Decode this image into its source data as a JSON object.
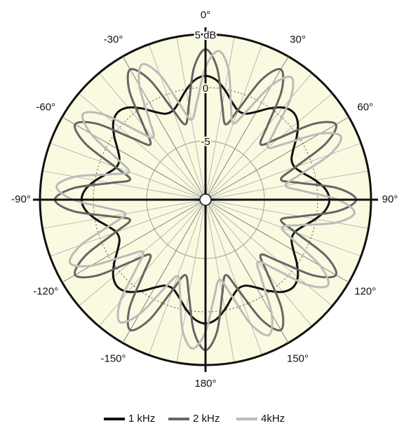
{
  "chart_data": {
    "type": "polar",
    "theta": [
      0,
      5,
      10,
      15,
      20,
      25,
      30,
      35,
      40,
      45,
      50,
      55,
      60,
      65,
      70,
      75,
      80,
      85,
      90,
      95,
      100,
      105,
      110,
      115,
      120,
      125,
      130,
      135,
      140,
      145,
      150,
      155,
      160,
      165,
      170,
      175,
      180,
      185,
      190,
      195,
      200,
      205,
      210,
      215,
      220,
      225,
      230,
      235,
      240,
      245,
      250,
      255,
      260,
      265,
      270,
      275,
      280,
      285,
      290,
      295,
      300,
      305,
      310,
      315,
      320,
      325,
      330,
      335,
      340,
      345,
      350,
      355
    ],
    "series": [
      {
        "name": "1 kHz",
        "color": "#111111",
        "width": 3,
        "values": [
          1.1,
          0.77,
          -0.06,
          -1.0,
          -1.62,
          -1.62,
          -1.0,
          -0.06,
          0.77,
          1.1,
          0.77,
          -0.06,
          -1.0,
          -1.62,
          -1.62,
          -1.0,
          -0.06,
          0.77,
          1.1,
          0.77,
          -0.06,
          -1.0,
          -1.62,
          -1.62,
          -1.0,
          -0.06,
          0.77,
          1.1,
          0.77,
          -0.06,
          -1.0,
          -1.62,
          -1.62,
          -1.0,
          -0.06,
          0.77,
          1.1,
          0.77,
          -0.06,
          -1.0,
          -1.62,
          -1.62,
          -1.0,
          -0.06,
          0.77,
          1.1,
          0.77,
          -0.06,
          -1.0,
          -1.62,
          -1.62,
          -1.0,
          -0.06,
          0.77,
          1.1,
          0.77,
          -0.06,
          -1.0,
          -1.62,
          -1.62,
          -1.0,
          -0.06,
          0.77,
          1.1,
          0.77,
          -0.06,
          -1.0,
          -1.62,
          -1.62,
          -1.0,
          -0.06,
          0.77
        ]
      },
      {
        "name": "2 kHz",
        "color": "#666666",
        "width": 3,
        "values": [
          3.6,
          1.9,
          -1.5,
          -3.2,
          -1.5,
          1.9,
          3.6,
          1.9,
          -1.5,
          -3.2,
          -1.5,
          1.9,
          3.6,
          1.9,
          -1.5,
          -3.2,
          -1.5,
          1.9,
          3.6,
          1.9,
          -1.5,
          -3.2,
          -1.5,
          1.9,
          3.6,
          1.9,
          -1.5,
          -3.2,
          -1.5,
          1.9,
          3.6,
          1.9,
          -1.5,
          -3.2,
          -1.5,
          1.9,
          3.6,
          1.9,
          -1.5,
          -3.2,
          -1.5,
          1.9,
          3.6,
          1.9,
          -1.5,
          -3.2,
          -1.5,
          1.9,
          3.6,
          1.9,
          -1.5,
          -3.2,
          -1.5,
          1.9,
          3.6,
          1.9,
          -1.5,
          -3.2,
          -1.5,
          1.9,
          3.6,
          1.9,
          -1.5,
          -3.2,
          -1.5,
          1.9,
          3.6,
          1.9,
          -1.5,
          -3.2,
          -1.5,
          1.9
        ]
      },
      {
        "name": "4kHz",
        "color": "#bbbbbb",
        "width": 3,
        "values": [
          1.9,
          3.5,
          1.9,
          -1.3,
          -2.9,
          -1.3,
          1.9,
          3.5,
          1.9,
          -1.3,
          -2.9,
          -1.3,
          1.9,
          3.5,
          1.9,
          -1.3,
          -2.9,
          -1.3,
          1.9,
          3.5,
          1.9,
          -1.3,
          -2.9,
          -1.3,
          1.9,
          3.5,
          1.9,
          -1.3,
          -2.9,
          -1.3,
          1.9,
          3.5,
          1.9,
          -1.3,
          -2.9,
          -1.3,
          1.9,
          3.5,
          1.9,
          -1.3,
          -2.9,
          -1.3,
          1.9,
          3.5,
          1.9,
          -1.3,
          -2.9,
          -1.3,
          1.9,
          3.5,
          1.9,
          -1.3,
          -2.9,
          -1.3,
          1.9,
          3.5,
          1.9,
          -1.3,
          -2.9,
          -1.3,
          1.9,
          3.5,
          1.9,
          -1.3,
          -2.9,
          -1.3,
          1.9,
          3.5,
          1.9,
          -1.3,
          -2.9,
          -1.3
        ]
      }
    ],
    "rlim": [
      -10,
      5
    ],
    "rticks": [
      {
        "value": 5,
        "label": "5 dB"
      },
      0,
      -5
    ],
    "thetaticks": [
      {
        "value": 0,
        "label": "0°"
      },
      {
        "value": 30,
        "label": "30°"
      },
      {
        "value": 60,
        "label": "60°"
      },
      {
        "value": 90,
        "label": "90°"
      },
      {
        "value": 120,
        "label": "120°"
      },
      {
        "value": 150,
        "label": "150°"
      },
      {
        "value": 180,
        "label": "180°"
      },
      {
        "value": -150,
        "label": "-150°"
      },
      {
        "value": -120,
        "label": "-120°"
      },
      {
        "value": -90,
        "label": "-90°"
      },
      {
        "value": -60,
        "label": "-60°"
      },
      {
        "value": -30,
        "label": "-30°"
      }
    ],
    "background": "#fafae1"
  }
}
